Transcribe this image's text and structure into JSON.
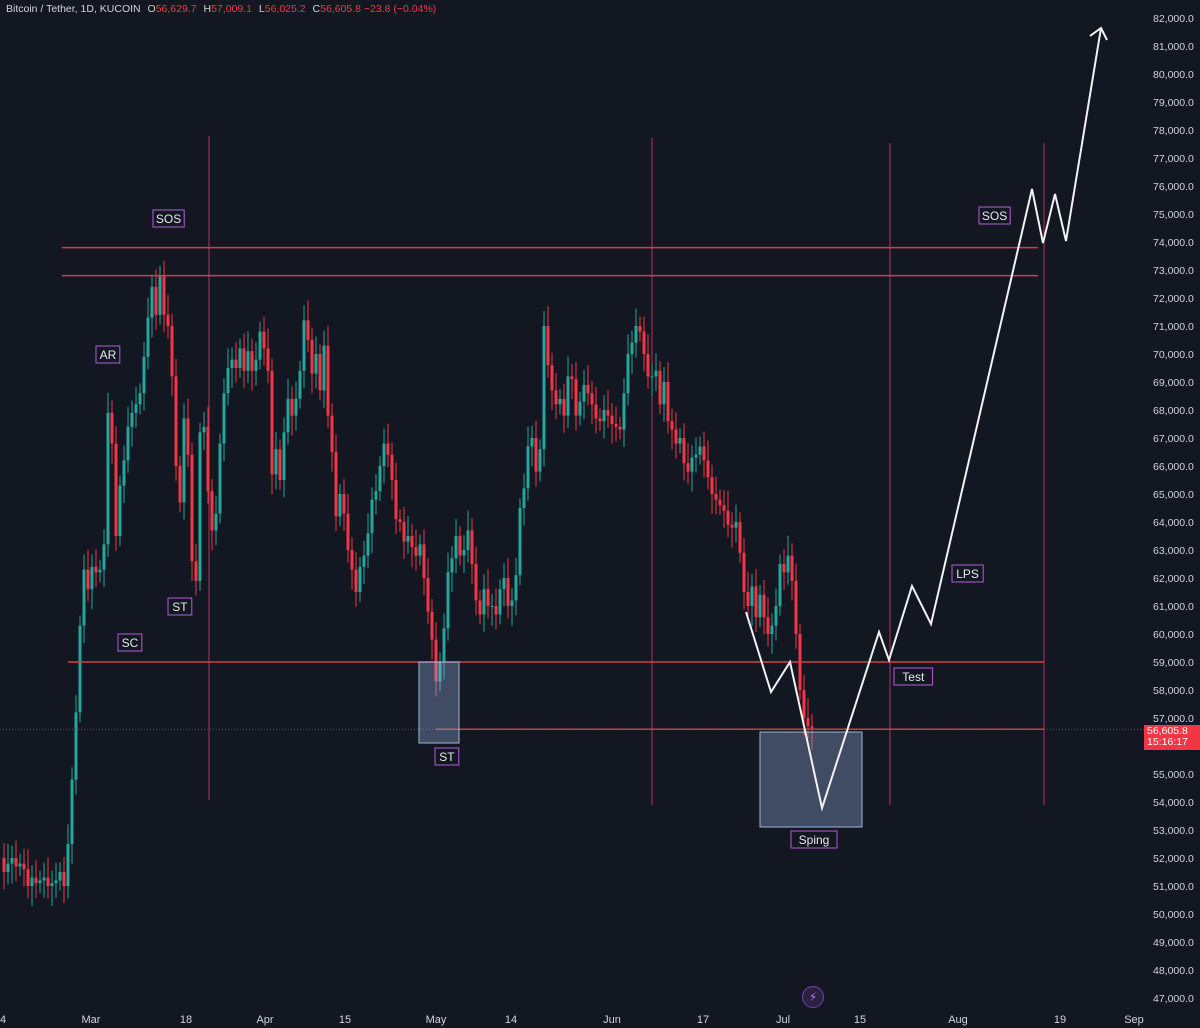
{
  "header": {
    "symbol": "Bitcoin / Tether, 1D, KUCOIN",
    "o_label": "O",
    "o_value": "56,629.7",
    "h_label": "H",
    "h_value": "57,009.1",
    "l_label": "L",
    "l_value": "56,025.2",
    "c_label": "C",
    "c_value": "56,605.8",
    "change": "−23.8 (−0.04%)"
  },
  "price_tag": {
    "price": "56,605.8",
    "countdown": "15:16:17"
  },
  "colors": {
    "background": "#131722",
    "up": "#26a69a",
    "down": "#f23645",
    "level": "#d93b4c",
    "label_border": "#b45cd9"
  },
  "icons": {
    "alert": "lightning-bolt-icon"
  },
  "chart_data": {
    "type": "candlestick",
    "ylim": [
      47000,
      82000
    ],
    "y_ticks": [
      "47,000.0",
      "48,000.0",
      "49,000.0",
      "50,000.0",
      "51,000.0",
      "52,000.0",
      "53,000.0",
      "54,000.0",
      "55,000.0",
      "57,000.0",
      "58,000.0",
      "59,000.0",
      "60,000.0",
      "61,000.0",
      "62,000.0",
      "63,000.0",
      "64,000.0",
      "65,000.0",
      "66,000.0",
      "67,000.0",
      "68,000.0",
      "69,000.0",
      "70,000.0",
      "71,000.0",
      "72,000.0",
      "73,000.0",
      "74,000.0",
      "75,000.0",
      "76,000.0",
      "77,000.0",
      "78,000.0",
      "79,000.0",
      "80,000.0",
      "81,000.0",
      "82,000.0"
    ],
    "x_ticks": [
      "4",
      "Mar",
      "18",
      "Apr",
      "15",
      "May",
      "14",
      "Jun",
      "17",
      "Jul",
      "15",
      "Aug",
      "19",
      "Sep"
    ],
    "price_levels": [
      73800,
      72800,
      59000,
      56600
    ],
    "annotations": [
      "SOS",
      "AR",
      "ST",
      "SC",
      "ST",
      "Sping",
      "Test",
      "LPS",
      "SOS"
    ]
  }
}
